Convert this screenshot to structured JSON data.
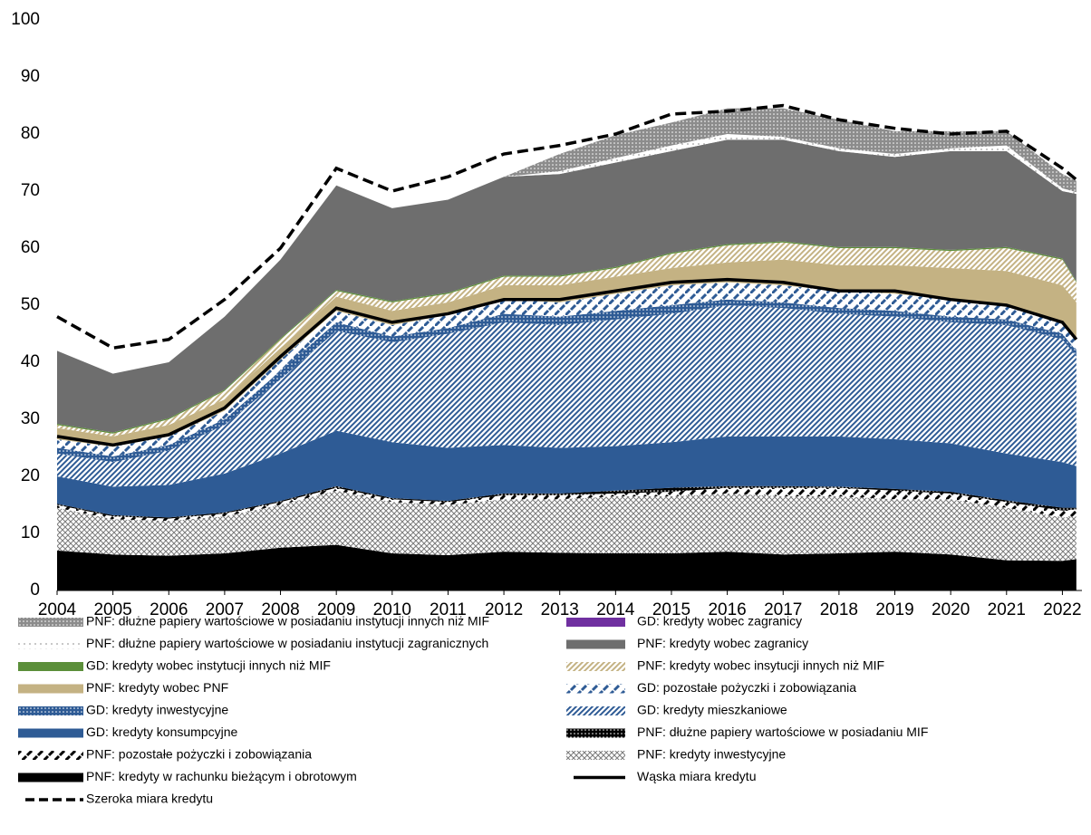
{
  "chart_data": {
    "type": "stacked-area",
    "x": [
      2004,
      2005,
      2006,
      2007,
      2008,
      2009,
      2010,
      2011,
      2012,
      2013,
      2014,
      2015,
      2016,
      2017,
      2018,
      2019,
      2020,
      2021,
      2022,
      2022.25
    ],
    "xlim": [
      2004,
      2022.35
    ],
    "xticks": [
      2004,
      2005,
      2006,
      2007,
      2008,
      2009,
      2010,
      2011,
      2012,
      2013,
      2014,
      2015,
      2016,
      2017,
      2018,
      2019,
      2020,
      2021,
      2022
    ],
    "ylim": [
      0,
      100
    ],
    "yticks": [
      0,
      10,
      20,
      30,
      40,
      50,
      60,
      70,
      80,
      90,
      100
    ],
    "series": [
      {
        "name": "PNF: dłużne papiery wartościowe w posiadaniu instytucji innych niż MIF",
        "type": "area",
        "color": "#8c8c8c",
        "pattern": "dense-dots",
        "values": [
          0,
          0,
          0,
          0,
          0,
          0,
          0,
          0,
          0,
          3,
          4,
          4,
          4.5,
          5,
          5,
          4,
          3,
          2.5,
          2.5,
          2
        ]
      },
      {
        "name": "GD: kredyty wobec zagranicy",
        "type": "area",
        "color": "#7030a0",
        "pattern": "solid",
        "values": [
          0,
          0,
          0,
          0,
          0,
          0,
          0,
          0,
          0,
          0,
          0,
          0,
          0,
          0,
          0,
          0,
          0,
          0,
          0,
          0
        ]
      },
      {
        "name": "PNF: dłużne papiery wartościowe w posiadaniu instytucji zagranicznych",
        "type": "area",
        "color": "#a0a0a0",
        "pattern": "dots",
        "values": [
          0,
          0,
          0,
          0,
          0,
          0,
          0,
          0,
          0,
          0.5,
          0.8,
          1,
          1,
          0.5,
          0.5,
          0.5,
          0.5,
          1,
          0.5,
          0.3
        ]
      },
      {
        "name": "PNF: kredyty wobec zagranicy",
        "type": "area",
        "color": "#6e6e6e",
        "pattern": "solid",
        "values": [
          12.8,
          10.3,
          9.8,
          12.8,
          13.8,
          18.3,
          16.3,
          16.3,
          17.3,
          17.8,
          18.3,
          17.8,
          18.3,
          17.8,
          16.8,
          15.8,
          17.3,
          16.8,
          11.8,
          15.3
        ]
      },
      {
        "name": "GD: kredyty wobec instytucji innych niż MIF",
        "type": "area",
        "color": "#5b8f3a",
        "pattern": "solid",
        "values": [
          0.2,
          0.2,
          0.2,
          0.2,
          0.2,
          0.2,
          0.2,
          0.2,
          0.2,
          0.2,
          0.2,
          0.2,
          0.2,
          0.2,
          0.2,
          0.2,
          0.2,
          0.2,
          0.2,
          0.2
        ]
      },
      {
        "name": "PNF: kredyty wobec insytucji innych niż MIF",
        "type": "area",
        "color": "#c4b283",
        "pattern": "hatch",
        "values": [
          0.5,
          0.5,
          1,
          1.5,
          1.5,
          1,
          1.5,
          1.5,
          1.5,
          1.5,
          1.5,
          2.5,
          3,
          3,
          3,
          3,
          3,
          4,
          4.5,
          3.5
        ]
      },
      {
        "name": "PNF: kredyty wobec PNF",
        "type": "area",
        "color": "#c4b283",
        "pattern": "solid",
        "values": [
          2,
          1.8,
          2,
          2,
          2,
          2.5,
          2.5,
          2.2,
          2.5,
          3,
          3,
          3,
          3.5,
          4.5,
          4.5,
          5,
          5.5,
          6,
          6.5,
          6.5
        ]
      },
      {
        "name": "GD: pozostałe pożyczki i zobowiązania",
        "type": "area",
        "color": "#2e5b95",
        "pattern": "dash",
        "values": [
          1.5,
          1.7,
          1.5,
          1.5,
          2,
          2,
          2,
          2.3,
          2.5,
          2.5,
          3,
          3.5,
          3,
          3,
          3,
          3,
          3,
          2.5,
          2,
          2
        ]
      },
      {
        "name": "GD: kredyty inwestycyjne",
        "type": "area",
        "color": "#2e5b95",
        "pattern": "dense-dots",
        "values": [
          1,
          1,
          1,
          1,
          1.5,
          1.5,
          1,
          1,
          1.5,
          1.5,
          1.5,
          1.5,
          1,
          1,
          1,
          1,
          1,
          1,
          1,
          1
        ]
      },
      {
        "name": "GD: kredyty mieszkaniowe",
        "type": "area",
        "color": "#2e5b95",
        "pattern": "hatch",
        "values": [
          4,
          4.3,
          6,
          8.5,
          13,
          17.5,
          17.5,
          20,
          21.5,
          21.5,
          22.2,
          22.5,
          23,
          22.5,
          21.5,
          21.5,
          21.2,
          22.5,
          21.5,
          19.2
        ]
      },
      {
        "name": "GD: kredyty konsumpcyjne",
        "type": "area",
        "color": "#2e5b95",
        "pattern": "solid",
        "values": [
          4.8,
          5,
          5.7,
          6.8,
          8.3,
          9.7,
          9.8,
          9.3,
          8.5,
          8,
          7.8,
          8,
          8.7,
          8.7,
          8.8,
          8.7,
          8.5,
          8.2,
          8,
          7.3
        ]
      },
      {
        "name": "PNF: dłużne papiery wartościowe w posiadaniu MIF",
        "type": "area",
        "color": "#000000",
        "pattern": "dense-dots",
        "values": [
          0.2,
          0.2,
          0.2,
          0.2,
          0.2,
          0.3,
          0.2,
          0.2,
          0.3,
          0.3,
          0.5,
          0.7,
          0.3,
          0.3,
          0.2,
          0.3,
          0.3,
          0.3,
          0.5,
          0.3
        ]
      },
      {
        "name": "PNF: pozostałe pożyczki i zobowiązania",
        "type": "area",
        "color": "#000000",
        "pattern": "dash",
        "values": [
          0.5,
          0.5,
          0.4,
          0.5,
          0.5,
          0.5,
          0.5,
          0.5,
          0.7,
          0.7,
          0.5,
          0.8,
          1,
          1.5,
          1.5,
          1.5,
          1,
          1,
          1.2,
          1.2
        ]
      },
      {
        "name": "PNF: kredyty inwestycyjne",
        "type": "area",
        "color": "#7a7a7a",
        "pattern": "crosshatch",
        "values": [
          7.5,
          6.2,
          6.1,
          6.5,
          7.5,
          9.5,
          9,
          8.8,
          9.2,
          9.4,
          10,
          10,
          10.2,
          10.2,
          10,
          9.2,
          9.7,
          9.2,
          7.6,
          7.5
        ]
      },
      {
        "name": "PNF: kredyty w rachunku bieżącym i obrotowym",
        "type": "area",
        "color": "#000000",
        "pattern": "solid",
        "values": [
          7,
          6.3,
          6.1,
          6.5,
          7.5,
          8,
          6.5,
          6.2,
          6.8,
          6.6,
          6.5,
          6.5,
          6.8,
          6.3,
          6.5,
          6.8,
          6.3,
          5.3,
          5.2,
          5.5
        ]
      },
      {
        "name": "Wąska miara kredytu",
        "type": "line",
        "color": "#000000",
        "dash": false,
        "values": [
          27,
          25.5,
          27.3,
          32,
          41,
          49.5,
          47,
          48.5,
          51,
          51,
          52.5,
          54,
          54.5,
          54,
          52.5,
          52.5,
          51,
          50,
          47,
          44
        ]
      },
      {
        "name": "Szeroka miara kredytu",
        "type": "line",
        "color": "#000000",
        "dash": true,
        "values": [
          48,
          42.5,
          44,
          51,
          60,
          74,
          70,
          72.5,
          76.5,
          78,
          80,
          83.5,
          84,
          85,
          82.5,
          81,
          80,
          80.5,
          74,
          72
        ]
      }
    ]
  }
}
